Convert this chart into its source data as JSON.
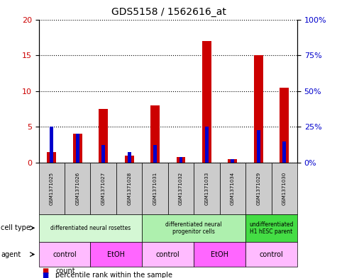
{
  "title": "GDS5158 / 1562616_at",
  "samples": [
    "GSM1371025",
    "GSM1371026",
    "GSM1371027",
    "GSM1371028",
    "GSM1371031",
    "GSM1371032",
    "GSM1371033",
    "GSM1371034",
    "GSM1371029",
    "GSM1371030"
  ],
  "counts": [
    1.5,
    4.0,
    7.5,
    1.0,
    8.0,
    0.8,
    17.0,
    0.5,
    15.0,
    10.5
  ],
  "percentile_ranks": [
    25.0,
    20.0,
    12.5,
    7.5,
    12.5,
    4.0,
    25.0,
    2.5,
    22.5,
    15.0
  ],
  "cell_type_groups": [
    {
      "label": "differentiated neural rosettes",
      "start": 0,
      "end": 3,
      "color": "#d4f7d4"
    },
    {
      "label": "differentiated neural\nprogenitor cells",
      "start": 4,
      "end": 7,
      "color": "#aef0ae"
    },
    {
      "label": "undifferentiated\nH1 hESC parent",
      "start": 8,
      "end": 9,
      "color": "#44dd44"
    }
  ],
  "agent_groups": [
    {
      "label": "control",
      "start": 0,
      "end": 1,
      "color": "#ffbbff"
    },
    {
      "label": "EtOH",
      "start": 2,
      "end": 3,
      "color": "#ff66ff"
    },
    {
      "label": "control",
      "start": 4,
      "end": 5,
      "color": "#ffbbff"
    },
    {
      "label": "EtOH",
      "start": 6,
      "end": 7,
      "color": "#ff66ff"
    },
    {
      "label": "control",
      "start": 8,
      "end": 9,
      "color": "#ffbbff"
    }
  ],
  "ylim_left": [
    0,
    20
  ],
  "ylim_right": [
    0,
    100
  ],
  "yticks_left": [
    0,
    5,
    10,
    15,
    20
  ],
  "yticks_right": [
    0,
    25,
    50,
    75,
    100
  ],
  "bar_color": "#cc0000",
  "pct_color": "#0000cc",
  "bg_color": "#ffffff",
  "sample_bg_color": "#cccccc"
}
